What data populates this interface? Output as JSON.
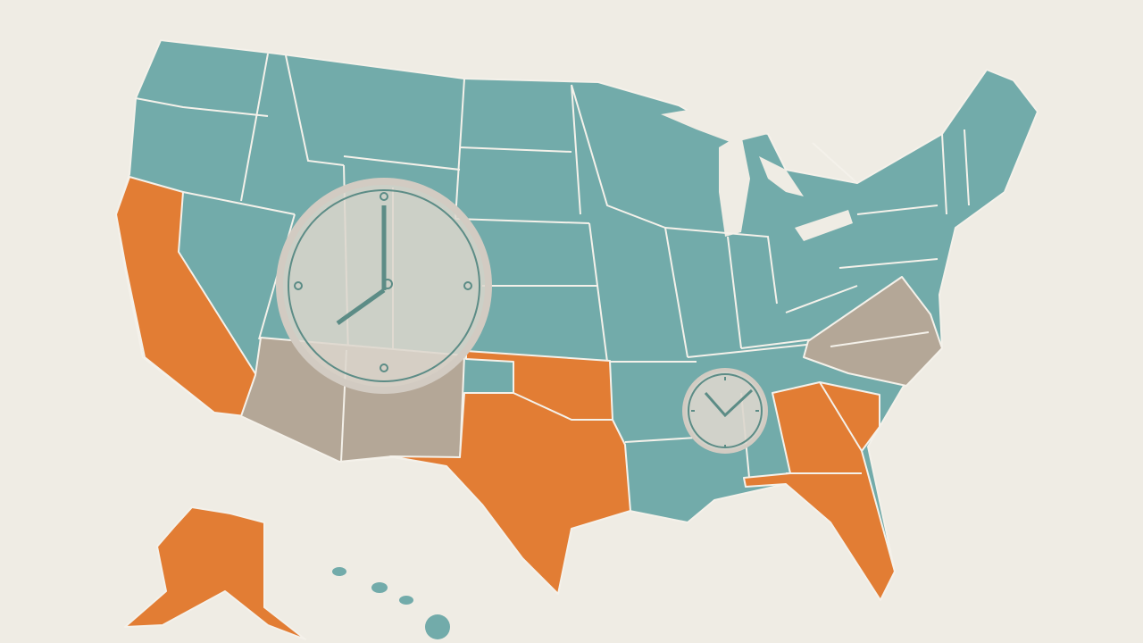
{
  "colors": {
    "background": "#efece4",
    "teal": "#72abaa",
    "orange": "#e27d34",
    "beige": "#b4a797",
    "border": "#f4f1ea",
    "clock_face": "#dcd6cd",
    "clock_stroke": "#5c8c86"
  },
  "icons": [
    "large-clock-icon",
    "small-clock-icon"
  ],
  "clocks": {
    "large": {
      "time": "7:00"
    },
    "small": {
      "time": "10:08"
    }
  }
}
